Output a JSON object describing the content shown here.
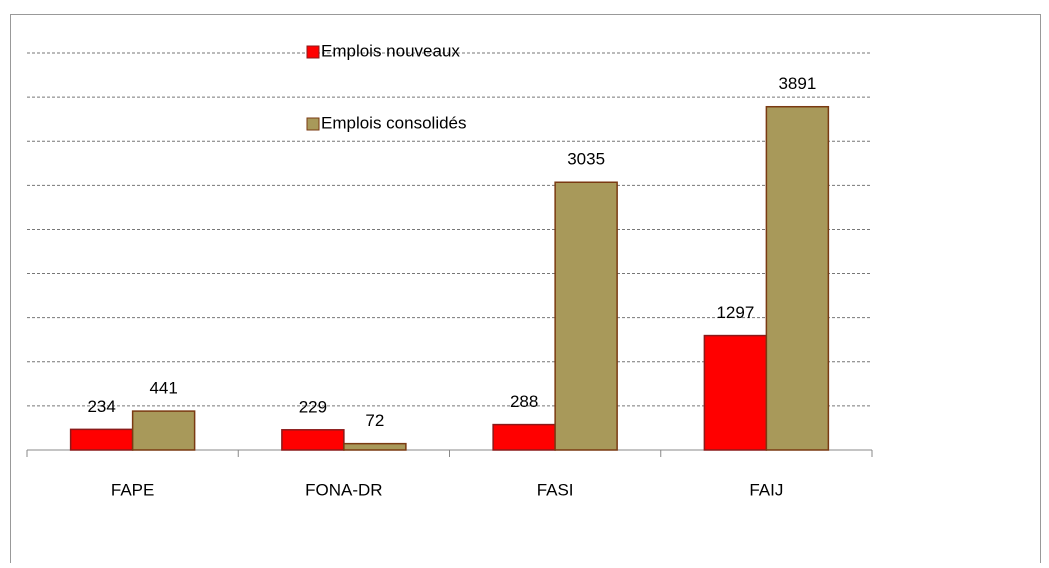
{
  "chart_data": {
    "type": "bar",
    "categories": [
      "FAPE",
      "FONA-DR",
      "FASI",
      "FAIJ"
    ],
    "series": [
      {
        "name": "Emplois nouveaux",
        "color": "#ff0000",
        "values": [
          234,
          229,
          288,
          1297
        ]
      },
      {
        "name": "Emplois consolidés",
        "color": "#a8995a",
        "values": [
          441,
          72,
          3035,
          3891
        ]
      }
    ],
    "ylim": [
      0,
      4500
    ],
    "yticks": [
      0,
      500,
      1000,
      1500,
      2000,
      2500,
      3000,
      3500,
      4000,
      4500
    ],
    "grid": true,
    "legend": "top"
  }
}
